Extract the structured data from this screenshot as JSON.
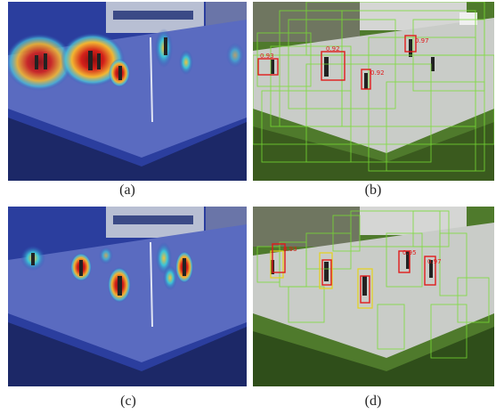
{
  "figure": {
    "panels": [
      {
        "id": "a",
        "caption": "(a)",
        "kind": "heatmap-overlay"
      },
      {
        "id": "b",
        "caption": "(b)",
        "kind": "detection-boxes",
        "box_labels": [
          "0.93",
          "0.92",
          "0.92",
          "0.97"
        ]
      },
      {
        "id": "c",
        "caption": "(c)",
        "kind": "heatmap-overlay"
      },
      {
        "id": "d",
        "caption": "(d)",
        "kind": "detection-boxes",
        "box_labels": [
          "0.93",
          "0.95",
          "0.97"
        ]
      }
    ],
    "colors": {
      "heat_hot": "#c41a12",
      "heat_warm": "#f2b632",
      "heat_cool": "#1fa7c9",
      "box_green": "#77dd33",
      "box_red": "#e01b1b",
      "box_yellow": "#e6d31a",
      "grass": "#3f6a22",
      "pavement": "#bfc3c7"
    }
  }
}
